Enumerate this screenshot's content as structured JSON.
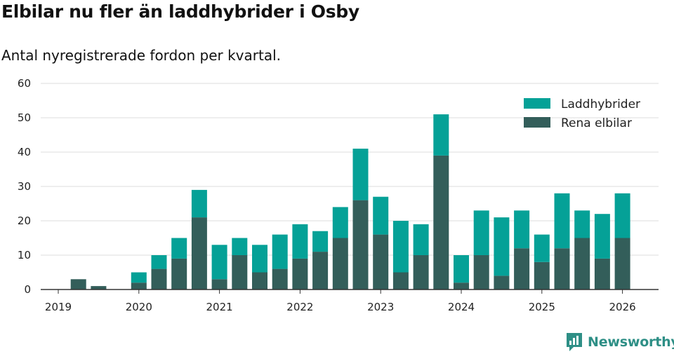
{
  "title": "Elbilar nu fler än laddhybrider i Osby",
  "subtitle": "Antal nyregistrerade fordon per kvartal.",
  "brand": {
    "name": "Newsworthy"
  },
  "colors": {
    "laddhybrider": "#05a197",
    "rena_elbilar": "#335e5a",
    "grid": "#dddddd",
    "axis": "#333333"
  },
  "chart_data": {
    "type": "bar",
    "stacked": true,
    "title": "Elbilar nu fler än laddhybrider i Osby",
    "subtitle": "Antal nyregistrerade fordon per kvartal.",
    "xlabel": "",
    "ylabel": "",
    "ylim": [
      0,
      60
    ],
    "yticks": [
      0,
      10,
      20,
      30,
      40,
      50,
      60
    ],
    "xticks": [
      "2019",
      "2020",
      "2021",
      "2022",
      "2023",
      "2024",
      "2025",
      "2026"
    ],
    "legend_position": "top-right",
    "categories": [
      "2019Q1",
      "2019Q2",
      "2019Q3",
      "2019Q4",
      "2020Q1",
      "2020Q2",
      "2020Q3",
      "2020Q4",
      "2021Q1",
      "2021Q2",
      "2021Q3",
      "2021Q4",
      "2022Q1",
      "2022Q2",
      "2022Q3",
      "2022Q4",
      "2023Q1",
      "2023Q2",
      "2023Q3",
      "2023Q4",
      "2024Q1",
      "2024Q2",
      "2024Q3",
      "2024Q4",
      "2025Q1",
      "2025Q2",
      "2025Q3",
      "2025Q4",
      "2026Q1"
    ],
    "series": [
      {
        "name": "Rena elbilar",
        "values": [
          0,
          3,
          1,
          0,
          2,
          6,
          9,
          21,
          3,
          10,
          5,
          6,
          9,
          11,
          15,
          26,
          16,
          5,
          10,
          39,
          2,
          10,
          4,
          12,
          8,
          12,
          15,
          9,
          15
        ]
      },
      {
        "name": "Laddhybrider",
        "values": [
          0,
          0,
          0,
          0,
          3,
          4,
          6,
          8,
          10,
          5,
          8,
          10,
          10,
          6,
          9,
          15,
          11,
          15,
          9,
          12,
          8,
          13,
          17,
          11,
          8,
          16,
          8,
          13,
          13
        ]
      }
    ]
  }
}
